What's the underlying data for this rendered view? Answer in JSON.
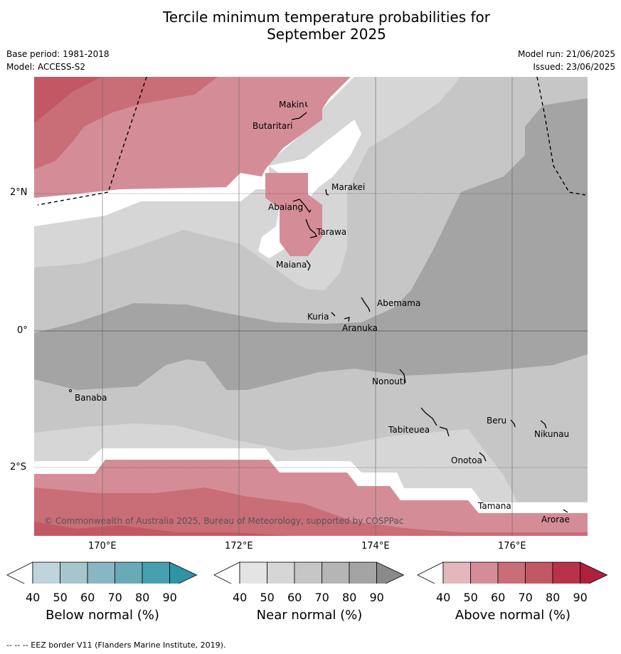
{
  "title_line1": "Tercile minimum temperature probabilities for",
  "title_line2": "September 2025",
  "base_period": "Base period: 1981-2018",
  "model": "Model: ACCESS-S2",
  "model_run": "Model run: 21/06/2025",
  "issued": "Issued: 23/06/2025",
  "lat_labels": [
    "2°N",
    "0°",
    "2°S"
  ],
  "lon_labels": [
    "170°E",
    "172°E",
    "174°E",
    "176°E"
  ],
  "places": [
    "Makin",
    "Butaritari",
    "Marakei",
    "Abaiang",
    "Tarawa",
    "Maiana",
    "Abemama",
    "Kuria",
    "Aranuka",
    "Banaba",
    "Nonouti",
    "Tabiteuea",
    "Beru",
    "Nikunau",
    "Onotoa",
    "Tamana",
    "Arorae"
  ],
  "copyright": "© Commonwealth of Australia 2025, Bureau of Meteorology, supported by COSPPac",
  "colorbars": [
    {
      "label": "Below normal (%)",
      "ticks": [
        "40",
        "50",
        "60",
        "70",
        "80",
        "90"
      ],
      "colors": [
        "#bfd4dc",
        "#a6c6ce",
        "#88b6c2",
        "#6aaab8",
        "#46a0b0",
        "#2f94a4"
      ]
    },
    {
      "label": "Near normal (%)",
      "ticks": [
        "40",
        "50",
        "60",
        "70",
        "80",
        "90"
      ],
      "colors": [
        "#e4e4e4",
        "#d6d6d6",
        "#c6c6c6",
        "#b5b5b5",
        "#a4a4a4",
        "#8a8a8a"
      ]
    },
    {
      "label": "Above normal (%)",
      "ticks": [
        "40",
        "50",
        "60",
        "70",
        "80",
        "90"
      ],
      "colors": [
        "#e3b7bd",
        "#d48d96",
        "#c96d77",
        "#c25863",
        "#b8334a",
        "#b01f3e"
      ]
    }
  ],
  "footer": "--  --  -- EEZ border V11 (Flanders Marine Institute, 2019)."
}
